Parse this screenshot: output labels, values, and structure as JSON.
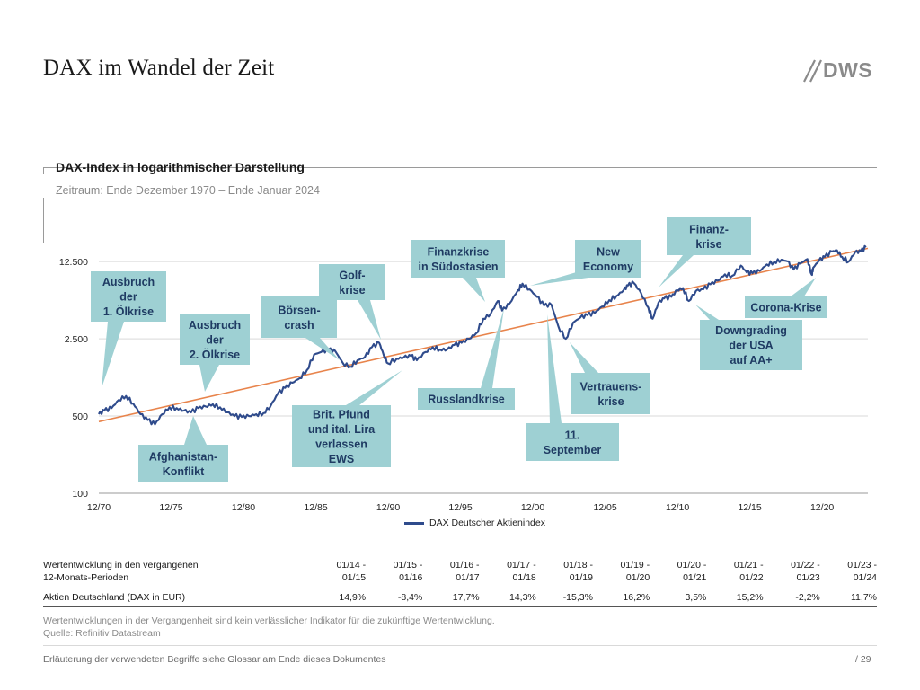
{
  "page": {
    "title": "DAX im Wandel der Zeit",
    "logo_text": "DWS"
  },
  "chart_header": {
    "title": "DAX-Index in logarithmischer Darstellung",
    "subtitle": "Zeitraum: Ende Dezember 1970 – Ende Januar 2024"
  },
  "colors": {
    "series": "#2f4b8c",
    "trend": "#e8844c",
    "callout": "#9ed0d3",
    "grid": "#d9d9d9"
  },
  "chart_data": {
    "type": "line",
    "y_scale": "log",
    "ylim": [
      100,
      16000
    ],
    "xlim": [
      1970.92,
      2024.08
    ],
    "y_ticks": [
      {
        "value": 100,
        "label": "100"
      },
      {
        "value": 500,
        "label": "500"
      },
      {
        "value": 2500,
        "label": "2.500"
      },
      {
        "value": 12500,
        "label": "12.500"
      }
    ],
    "x_ticks": [
      {
        "value": 1970.92,
        "label": "12/70"
      },
      {
        "value": 1975.92,
        "label": "12/75"
      },
      {
        "value": 1980.92,
        "label": "12/80"
      },
      {
        "value": 1985.92,
        "label": "12/85"
      },
      {
        "value": 1990.92,
        "label": "12/90"
      },
      {
        "value": 1995.92,
        "label": "12/95"
      },
      {
        "value": 2000.92,
        "label": "12/00"
      },
      {
        "value": 2005.92,
        "label": "12/05"
      },
      {
        "value": 2010.92,
        "label": "12/10"
      },
      {
        "value": 2015.92,
        "label": "12/15"
      },
      {
        "value": 2020.92,
        "label": "12/20"
      }
    ],
    "grid": true,
    "legend_position": "bottom-center",
    "series": [
      {
        "name": "DAX Deutscher Aktienindex",
        "x": [
          1970.92,
          1971.3,
          1971.8,
          1972.3,
          1972.8,
          1973.3,
          1973.8,
          1974.3,
          1974.8,
          1975.3,
          1975.8,
          1976.3,
          1976.8,
          1977.3,
          1977.8,
          1978.3,
          1978.8,
          1979.3,
          1979.8,
          1980.3,
          1980.8,
          1981.3,
          1981.8,
          1982.3,
          1982.8,
          1983.3,
          1983.8,
          1984.3,
          1984.8,
          1985.3,
          1985.8,
          1986.3,
          1986.8,
          1987.3,
          1987.8,
          1988.3,
          1988.8,
          1989.3,
          1989.8,
          1990.3,
          1990.6,
          1990.9,
          1991.5,
          1992.0,
          1992.5,
          1992.9,
          1993.5,
          1994.0,
          1994.5,
          1995.0,
          1995.5,
          1996.0,
          1996.5,
          1997.0,
          1997.5,
          1998.0,
          1998.5,
          1998.8,
          1999.3,
          1999.9,
          2000.2,
          2000.7,
          2001.2,
          2001.7,
          2002.2,
          2002.7,
          2003.2,
          2003.7,
          2004.2,
          2004.7,
          2005.2,
          2005.7,
          2006.2,
          2006.7,
          2007.2,
          2007.5,
          2007.9,
          2008.4,
          2008.9,
          2009.2,
          2009.6,
          2010.0,
          2010.5,
          2010.9,
          2011.3,
          2011.7,
          2012.2,
          2012.7,
          2013.2,
          2013.7,
          2014.2,
          2014.7,
          2015.3,
          2015.7,
          2016.1,
          2016.6,
          2017.1,
          2017.6,
          2018.1,
          2018.5,
          2018.95,
          2019.4,
          2019.9,
          2020.2,
          2020.3,
          2020.7,
          2021.1,
          2021.6,
          2021.95,
          2022.3,
          2022.75,
          2023.2,
          2023.6,
          2023.95
        ],
        "values": [
          520,
          560,
          590,
          700,
          760,
          650,
          520,
          460,
          420,
          520,
          600,
          590,
          560,
          540,
          590,
          610,
          640,
          600,
          540,
          500,
          490,
          500,
          520,
          530,
          620,
          800,
          900,
          1000,
          1100,
          1300,
          1800,
          1900,
          2000,
          1900,
          1500,
          1400,
          1600,
          1700,
          2100,
          2300,
          1800,
          1500,
          1650,
          1700,
          1750,
          1600,
          1900,
          2100,
          2000,
          2000,
          2200,
          2300,
          2500,
          2800,
          3800,
          4200,
          5500,
          4500,
          5200,
          6900,
          7900,
          7000,
          6000,
          5000,
          5100,
          3200,
          2500,
          3500,
          3900,
          4100,
          4300,
          4900,
          5600,
          6100,
          6900,
          7600,
          8000,
          6500,
          4800,
          3800,
          5300,
          5800,
          6000,
          6900,
          7200,
          5500,
          6800,
          7000,
          7800,
          8400,
          9600,
          9300,
          11500,
          10000,
          9800,
          10300,
          11800,
          12400,
          13000,
          12600,
          10600,
          12000,
          13200,
          9500,
          11000,
          12800,
          13800,
          15400,
          15800,
          13800,
          12500,
          15200,
          15500,
          16900
        ]
      },
      {
        "name": "",
        "x": [
          1970.92,
          2024.08
        ],
        "values": [
          445,
          16500
        ]
      }
    ],
    "annotations": [
      {
        "text": "Ausbruch der 1. Ölkrise"
      },
      {
        "text": "Ausbruch der 2. Ölkrise"
      },
      {
        "text": "Afghanistan-Konflikt"
      },
      {
        "text": "Börsen-crash"
      },
      {
        "text": "Golf-krise"
      },
      {
        "text": "Brit. Pfund und ital. Lira verlassen EWS"
      },
      {
        "text": "Finanzkrise in Südostasien"
      },
      {
        "text": "Russlandkrise"
      },
      {
        "text": "11. September"
      },
      {
        "text": "New Economy"
      },
      {
        "text": "Vertrauens-krise"
      },
      {
        "text": "Finanz-krise"
      },
      {
        "text": "Downgrading der USA auf AA+"
      },
      {
        "text": "Corona-Krise"
      }
    ]
  },
  "callouts": [
    {
      "lines": [
        "Ausbruch",
        "der",
        "1. Ölkrise"
      ]
    },
    {
      "lines": [
        "Ausbruch",
        "der",
        "2. Ölkrise"
      ]
    },
    {
      "lines": [
        "Afghanistan-",
        "Konflikt"
      ]
    },
    {
      "lines": [
        "Börsen-",
        "crash"
      ]
    },
    {
      "lines": [
        "Golf-",
        "krise"
      ]
    },
    {
      "lines": [
        "Brit. Pfund",
        "und ital. Lira",
        "verlassen",
        "EWS"
      ]
    },
    {
      "lines": [
        "Finanzkrise",
        "in Südostasien"
      ]
    },
    {
      "lines": [
        "Russlandkrise"
      ]
    },
    {
      "lines": [
        "11.",
        "September"
      ]
    },
    {
      "lines": [
        "New",
        "Economy"
      ]
    },
    {
      "lines": [
        "Vertrauens-",
        "krise"
      ]
    },
    {
      "lines": [
        "Finanz-",
        "krise"
      ]
    },
    {
      "lines": [
        "Downgrading",
        "der USA",
        "auf AA+"
      ]
    },
    {
      "lines": [
        "Corona-Krise"
      ]
    }
  ],
  "table": {
    "header_label_line1": "Wertentwicklung in den vergangenen",
    "header_label_line2": "12-Monats-Perioden",
    "periods": [
      {
        "line1": "01/14 -",
        "line2": "01/15"
      },
      {
        "line1": "01/15 -",
        "line2": "01/16"
      },
      {
        "line1": "01/16 -",
        "line2": "01/17"
      },
      {
        "line1": "01/17 -",
        "line2": "01/18"
      },
      {
        "line1": "01/18 -",
        "line2": "01/19"
      },
      {
        "line1": "01/19 -",
        "line2": "01/20"
      },
      {
        "line1": "01/20 -",
        "line2": "01/21"
      },
      {
        "line1": "01/21 -",
        "line2": "01/22"
      },
      {
        "line1": "01/22 -",
        "line2": "01/23"
      },
      {
        "line1": "01/23 -",
        "line2": "01/24"
      }
    ],
    "row_label": "Aktien Deutschland (DAX in EUR)",
    "values": [
      "14,9%",
      "-8,4%",
      "17,7%",
      "14,3%",
      "-15,3%",
      "16,2%",
      "3,5%",
      "15,2%",
      "-2,2%",
      "11,7%"
    ]
  },
  "footnotes": {
    "line1": "Wertentwicklungen in der Vergangenheit sind kein verlässlicher Indikator für die zukünftige Wertentwicklung.",
    "line2": "Quelle: Refinitiv Datastream"
  },
  "footer": {
    "left": "Erläuterung der verwendeten Begriffe siehe Glossar am Ende dieses Dokumentes",
    "right": "/  29"
  }
}
